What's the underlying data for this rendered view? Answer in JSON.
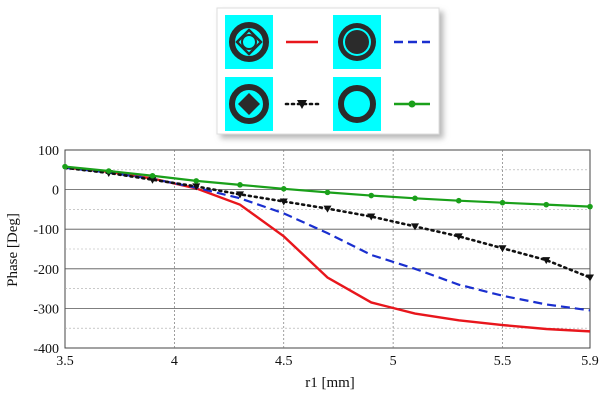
{
  "chart_data": {
    "type": "line",
    "title": "",
    "xlabel": "r1 [mm]",
    "ylabel": "Phase [Deg]",
    "xlim": [
      3.5,
      5.9
    ],
    "ylim": [
      -400,
      100
    ],
    "xticks": [
      3.5,
      4,
      4.5,
      5,
      5.5,
      5.9
    ],
    "xtick_labels": [
      "3.5",
      "4",
      "4.5",
      "5",
      "5.5",
      "5.9"
    ],
    "yticks": [
      100,
      0,
      -100,
      -200,
      -300,
      -400
    ],
    "ytick_labels": [
      "100",
      "0",
      "-100",
      "-200",
      "-300",
      "-400"
    ],
    "grid": true,
    "legend_position": "top-center",
    "series": [
      {
        "legend_icon": "circle-ring-with-diamond-ring-icon",
        "color": "#e8161c",
        "line": "solid",
        "marker": "none",
        "x": [
          3.5,
          3.7,
          3.9,
          4.1,
          4.3,
          4.5,
          4.7,
          4.9,
          5.1,
          5.3,
          5.5,
          5.7,
          5.9
        ],
        "y": [
          56,
          45,
          28,
          3,
          -38,
          -118,
          -222,
          -285,
          -313,
          -330,
          -342,
          -352,
          -358
        ]
      },
      {
        "legend_icon": "circle-ring-with-filled-disk-icon",
        "color": "#1a2fcf",
        "line": "dashed",
        "marker": "none",
        "x": [
          3.5,
          3.7,
          3.9,
          4.1,
          4.3,
          4.5,
          4.7,
          4.9,
          5.1,
          5.3,
          5.5,
          5.7,
          5.9
        ],
        "y": [
          55,
          43,
          27,
          5,
          -22,
          -60,
          -110,
          -165,
          -200,
          -240,
          -268,
          -290,
          -305
        ]
      },
      {
        "legend_icon": "circle-ring-with-filled-diamond-icon",
        "color": "#111111",
        "line": "dotted",
        "marker": "triangle-down",
        "x": [
          3.5,
          3.7,
          3.9,
          4.1,
          4.3,
          4.5,
          4.7,
          4.9,
          5.1,
          5.3,
          5.5,
          5.7,
          5.9
        ],
        "y": [
          55,
          42,
          25,
          8,
          -12,
          -30,
          -48,
          -68,
          -93,
          -118,
          -148,
          -178,
          -222
        ]
      },
      {
        "legend_icon": "open-ring-icon",
        "color": "#1aa01a",
        "line": "solid",
        "marker": "circle",
        "x": [
          3.5,
          3.7,
          3.9,
          4.1,
          4.3,
          4.5,
          4.7,
          4.9,
          5.1,
          5.3,
          5.5,
          5.7,
          5.9
        ],
        "y": [
          58,
          47,
          35,
          22,
          12,
          2,
          -7,
          -15,
          -22,
          -28,
          -33,
          -38,
          -43
        ]
      }
    ],
    "legend_colors": {
      "background": "#ffffff",
      "swatch_bg": "#00ffff",
      "ring": "#2b2b2b"
    }
  }
}
